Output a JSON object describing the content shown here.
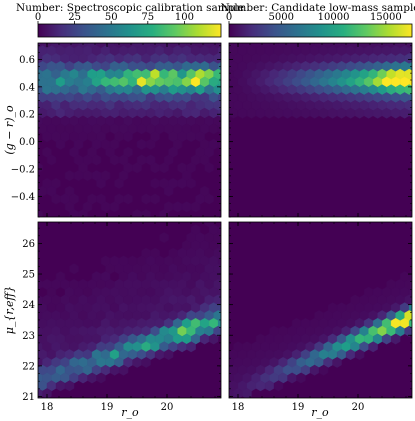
{
  "chart_data": {
    "type": "heatmap",
    "colormap": "viridis",
    "colorbars": [
      {
        "label": "Number: Spectroscopic calibration sample",
        "range": [
          0,
          125
        ],
        "ticks": [
          "0",
          "25",
          "50",
          "75",
          "100"
        ],
        "tick_values": [
          0,
          25,
          50,
          75,
          100
        ]
      },
      {
        "label": "Number: Candidate low-mass sample",
        "range": [
          0,
          17500
        ],
        "ticks": [
          "0",
          "5000",
          "10000",
          "15000"
        ],
        "tick_values": [
          0,
          5000,
          10000,
          15000
        ]
      }
    ],
    "x_axis": {
      "label": "r_o",
      "range": [
        17.85,
        20.9
      ],
      "ticks": [
        "18",
        "19",
        "20"
      ],
      "tick_values": [
        18,
        19,
        20
      ]
    },
    "y_axes": [
      {
        "label": "(g − r)_o",
        "range": [
          -0.55,
          0.72
        ],
        "ticks": [
          "−0.4",
          "−0.2",
          "0.0",
          "0.2",
          "0.4",
          "0.6"
        ],
        "tick_values": [
          -0.4,
          -0.2,
          0.0,
          0.2,
          0.4,
          0.6
        ]
      },
      {
        "label": "μ_{r,eff}",
        "range": [
          20.95,
          26.7
        ],
        "ticks": [
          "21",
          "22",
          "23",
          "24",
          "25",
          "26"
        ],
        "tick_values": [
          21,
          22,
          23,
          24,
          25,
          26
        ]
      }
    ],
    "panels": [
      {
        "position": "top-left",
        "x": "r_o",
        "y": "(g − r)_o",
        "colorbar": 0,
        "description": "Hexbin density of the spectroscopic sample; dense band at (g−r)_o ≈ 0.35–0.55 for r_o 18–20.8, peaks ≈ 120 near r_o ≈ 19.7 and 20.5 at (g−r)_o ≈ 0.45; sparse tail down to (g−r)_o ≈ −0.45.",
        "peaks": [
          {
            "x": 19.73,
            "y": 0.45,
            "value": 120
          },
          {
            "x": 20.5,
            "y": 0.46,
            "value": 120
          }
        ]
      },
      {
        "position": "top-right",
        "x": "r_o",
        "y": "(g − r)_o",
        "colorbar": 1,
        "description": "Hexbin density of the candidate low-mass sample; band at (g−r)_o ≈ 0.3–0.6 increasing in density toward faint r_o, peak ≈ 16000 near r_o ≈ 20.6, (g−r)_o ≈ 0.45.",
        "peaks": [
          {
            "x": 20.6,
            "y": 0.45,
            "value": 16000
          }
        ]
      },
      {
        "position": "bottom-left",
        "x": "r_o",
        "y": "μ_{r,eff}",
        "colorbar": 0,
        "description": "Spectroscopic sample in surface brightness; diagonal ridge from (18.0, 21.6) to (20.7, 23.4), peak ≈ 125 near r_o ≈ 20.4, μ ≈ 23.1; diffuse scatter up to μ ≈ 26.5.",
        "peaks": [
          {
            "x": 20.3,
            "y": 23.0,
            "value": 125
          }
        ]
      },
      {
        "position": "bottom-right",
        "x": "r_o",
        "y": "μ_{r,eff}",
        "colorbar": 1,
        "description": "Candidate sample in surface brightness; tight diagonal ridge from (18.0, 21.2) to (20.8, 23.5), peak ≈ 17000 near r_o ≈ 20.7, μ ≈ 23.4.",
        "peaks": [
          {
            "x": 20.7,
            "y": 23.45,
            "value": 17000
          }
        ]
      }
    ]
  }
}
